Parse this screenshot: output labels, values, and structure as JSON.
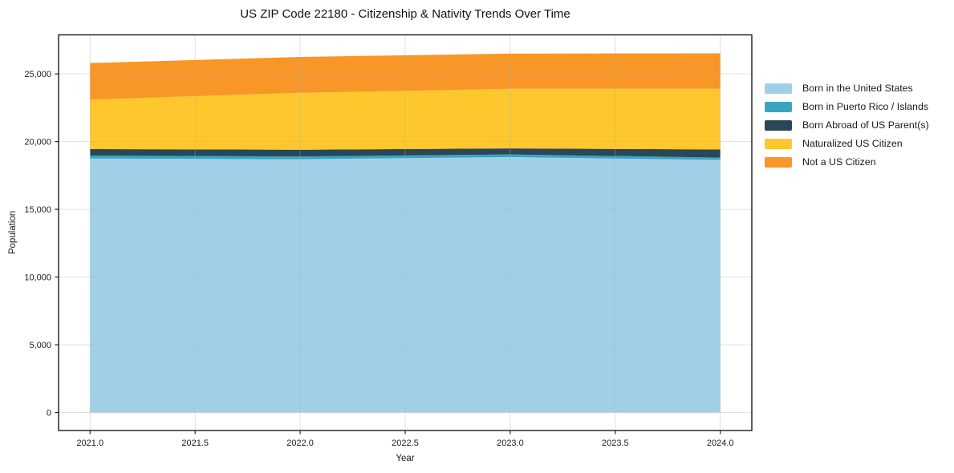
{
  "title": "US ZIP Code 22180 - Citizenship & Nativity Trends Over Time",
  "chart_data": {
    "type": "area",
    "stacked": true,
    "title": "US ZIP Code 22180 - Citizenship & Nativity Trends Over Time",
    "xlabel": "Year",
    "ylabel": "Population",
    "x": [
      2021,
      2022,
      2023,
      2024
    ],
    "series": [
      {
        "name": "Born in the United States",
        "color": "#a0d0e8",
        "values": [
          18750,
          18700,
          18850,
          18650
        ]
      },
      {
        "name": "Born in Puerto Rico / Islands",
        "color": "#3aa5c1",
        "values": [
          220,
          200,
          200,
          170
        ]
      },
      {
        "name": "Born Abroad of US Parent(s)",
        "color": "#294758",
        "values": [
          480,
          500,
          450,
          600
        ]
      },
      {
        "name": "Naturalized US Citizen",
        "color": "#fdc72d",
        "values": [
          3650,
          4200,
          4400,
          4480
        ]
      },
      {
        "name": "Not a US Citizen",
        "color": "#f89728",
        "values": [
          2700,
          2650,
          2600,
          2620
        ]
      }
    ],
    "xlim": [
      2020.85,
      2024.15
    ],
    "ylim": [
      -1330,
      27880
    ],
    "x_ticks": [
      2021.0,
      2021.5,
      2022.0,
      2022.5,
      2023.0,
      2023.5,
      2024.0
    ],
    "x_tick_labels": [
      "2021.0",
      "2021.5",
      "2022.0",
      "2022.5",
      "2023.0",
      "2023.5",
      "2024.0"
    ],
    "y_ticks": [
      0,
      5000,
      10000,
      15000,
      20000,
      25000
    ],
    "y_tick_labels": [
      "0",
      "5,000",
      "10,000",
      "15,000",
      "20,000",
      "25,000"
    ],
    "grid": true,
    "legend_position": "right",
    "colors": {
      "spine": "#1a1a1a",
      "grid": "#b0b0b0",
      "tick": "#262626"
    }
  }
}
